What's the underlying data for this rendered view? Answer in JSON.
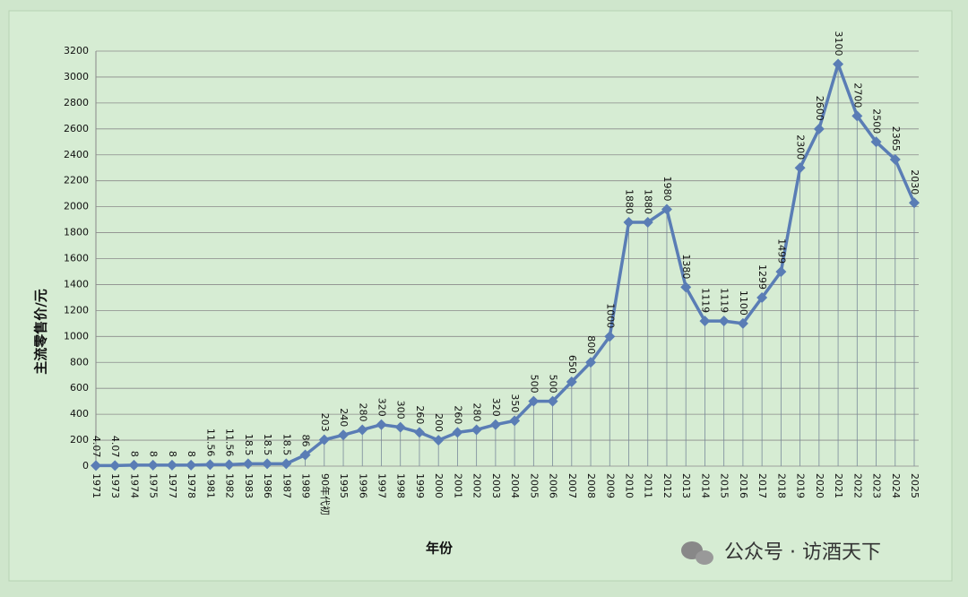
{
  "chart_data": {
    "type": "line",
    "y_label": "主流零售价/元",
    "x_label": "年份",
    "watermark": "公众号 · 访酒天下",
    "categories": [
      "1971",
      "1973",
      "1974",
      "1975",
      "1977",
      "1978",
      "1981",
      "1982",
      "1983",
      "1986",
      "1987",
      "1989",
      "90年代初",
      "1995",
      "1996",
      "1997",
      "1998",
      "1999",
      "2000",
      "2001",
      "2002",
      "2003",
      "2004",
      "2005",
      "2006",
      "2007",
      "2008",
      "2009",
      "2010",
      "2011",
      "2012",
      "2013",
      "2014",
      "2015",
      "2016",
      "2017",
      "2018",
      "2019",
      "2020",
      "2021",
      "2022",
      "2023",
      "2024",
      "2025"
    ],
    "values": [
      4.07,
      4.07,
      8,
      8,
      8,
      8,
      11.56,
      11.56,
      18.5,
      18.5,
      18.5,
      86,
      203,
      240,
      280,
      320,
      300,
      260,
      200,
      260,
      280,
      320,
      350,
      500,
      500,
      650,
      800,
      1000,
      1880,
      1880,
      1980,
      1380,
      1119,
      1119,
      1100,
      1299,
      1499,
      2300,
      2600,
      3100,
      2700,
      2500,
      2365,
      2030
    ],
    "color": "#5a7db5",
    "ylim": [
      0,
      3200
    ],
    "yticks": [
      0,
      200,
      400,
      600,
      800,
      1000,
      1200,
      1400,
      1600,
      1800,
      2000,
      2200,
      2400,
      2600,
      2800,
      3000,
      3200
    ],
    "grid": true
  }
}
